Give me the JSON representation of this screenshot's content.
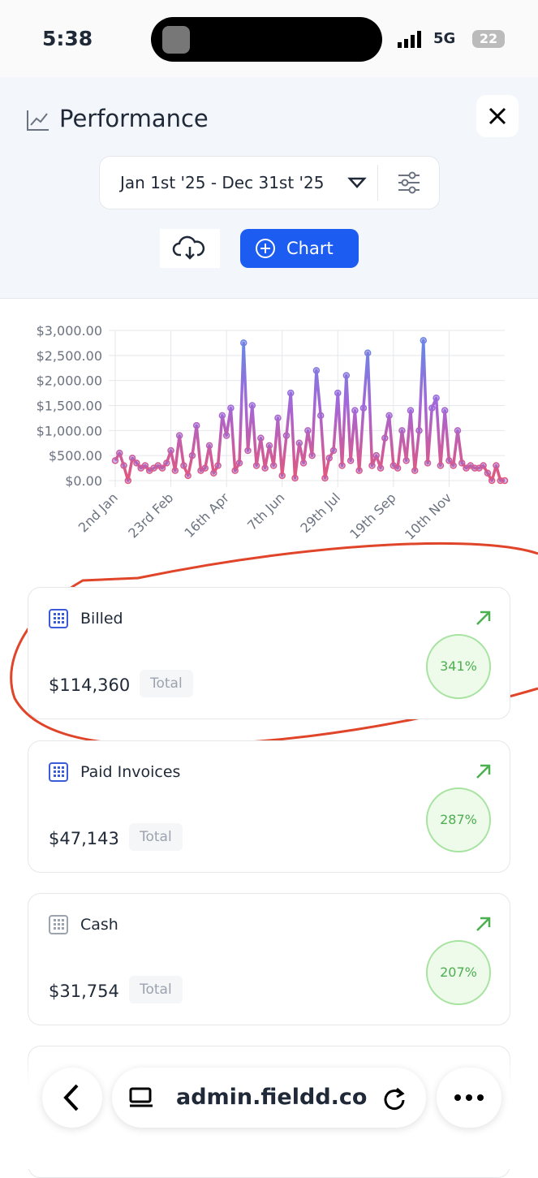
{
  "status_bar": {
    "time": "5:38",
    "network": "5G",
    "battery": "22"
  },
  "header": {
    "title": "Performance",
    "date_range": "Jan 1st '25 - Dec 31st '25",
    "chart_button": "Chart"
  },
  "chart_data": {
    "type": "line",
    "categories": [
      "2nd Jan",
      null,
      null,
      null,
      null,
      null,
      null,
      null,
      null,
      null,
      null,
      null,
      null,
      "23rd Feb",
      null,
      null,
      null,
      null,
      null,
      null,
      null,
      null,
      null,
      null,
      null,
      null,
      "16th Apr",
      null,
      null,
      null,
      null,
      null,
      null,
      null,
      null,
      null,
      null,
      null,
      null,
      "7th Jun",
      null,
      null,
      null,
      null,
      null,
      null,
      null,
      null,
      null,
      null,
      null,
      null,
      "29th Jul",
      null,
      null,
      null,
      null,
      null,
      null,
      null,
      null,
      null,
      null,
      null,
      null,
      "19th Sep",
      null,
      null,
      null,
      null,
      null,
      null,
      null,
      null,
      null,
      null,
      null,
      null,
      "10th Nov",
      null,
      null,
      null,
      null,
      null,
      null,
      null,
      null,
      null,
      null,
      null,
      null,
      null
    ],
    "series": [
      {
        "name": "Billed",
        "color": "#8b6fe0",
        "values": [
          400,
          550,
          300,
          0,
          450,
          350,
          250,
          300,
          200,
          250,
          300,
          250,
          350,
          600,
          200,
          900,
          300,
          100,
          500,
          1100,
          200,
          250,
          700,
          150,
          300,
          1300,
          900,
          1450,
          200,
          350,
          2750,
          600,
          1500,
          300,
          850,
          250,
          700,
          300,
          1250,
          100,
          900,
          1750,
          50,
          750,
          350,
          1000,
          500,
          2200,
          1300,
          50,
          450,
          600,
          1750,
          300,
          2100,
          400,
          1400,
          200,
          1450,
          2550,
          300,
          500,
          250,
          850,
          1300,
          300,
          250,
          1000,
          400,
          1400,
          200,
          1000,
          2800,
          350,
          1450,
          1650,
          300,
          1400,
          400,
          300,
          1000,
          350,
          250,
          300,
          250,
          250,
          300,
          150,
          0,
          300,
          0,
          0
        ]
      }
    ],
    "ylim": [
      0,
      3000
    ],
    "yticks": [
      {
        "value": 0,
        "label": "$0.00"
      },
      {
        "value": 500,
        "label": "$500.00"
      },
      {
        "value": 1000,
        "label": "$1,000.00"
      },
      {
        "value": 1500,
        "label": "$1,500.00"
      },
      {
        "value": 2000,
        "label": "$2,000.00"
      },
      {
        "value": 2500,
        "label": "$2,500.00"
      },
      {
        "value": 3000,
        "label": "$3,000.00"
      }
    ],
    "grid": true
  },
  "cards": [
    {
      "title": "Billed",
      "amount": "$114,360",
      "badge": "Total",
      "change": "341%"
    },
    {
      "title": "Paid Invoices",
      "amount": "$47,143",
      "badge": "Total",
      "change": "287%"
    },
    {
      "title": "Cash",
      "amount": "$31,754",
      "badge": "Total",
      "change": "207%"
    }
  ],
  "browser": {
    "url": "admin.fieldd.co"
  }
}
